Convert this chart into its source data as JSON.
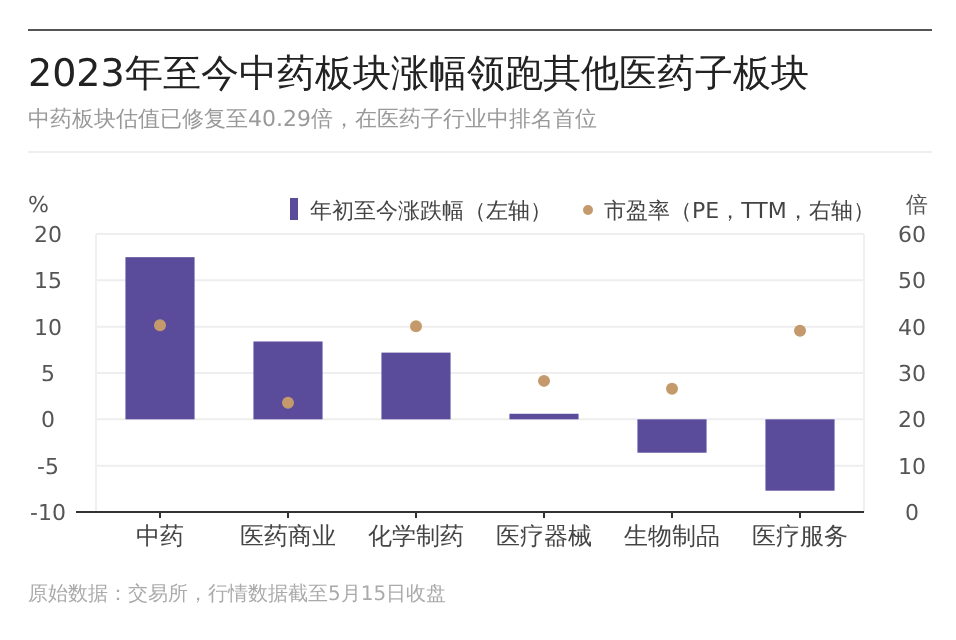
{
  "chart_data": {
    "type": "bar",
    "title": "2023年至今中药板块涨幅领跑其他医药子板块",
    "subtitle": "中药板块估值已修复至40.29倍，在医药子行业中排名首位",
    "ylabel": "%",
    "y2label": "倍",
    "categories": [
      "中药",
      "医药商业",
      "化学制药",
      "医疗器械",
      "生物制品",
      "医疗服务"
    ],
    "series": [
      {
        "name": "年初至今涨跌幅（左轴）",
        "color": "#5a4b9b",
        "values": [
          17.5,
          8.4,
          7.2,
          0.6,
          -3.6,
          -7.7
        ]
      },
      {
        "name": "市盈率（PE，TTM，右轴）",
        "type": "scatter",
        "axis": "y2",
        "color": "#c49a6c",
        "values": [
          40.3,
          23.6,
          40.1,
          28.3,
          26.6,
          39.1
        ]
      }
    ],
    "ylim": [
      -10,
      20
    ],
    "yticks": [
      -10,
      -5,
      0,
      5,
      10,
      15,
      20
    ],
    "y2lim": [
      0,
      60
    ],
    "y2ticks": [
      0,
      10,
      20,
      30,
      40,
      50,
      60
    ],
    "grid": "y",
    "legend": "top",
    "annotations": [
      "原始数据：交易所，行情数据截至5月15日收盘"
    ]
  }
}
